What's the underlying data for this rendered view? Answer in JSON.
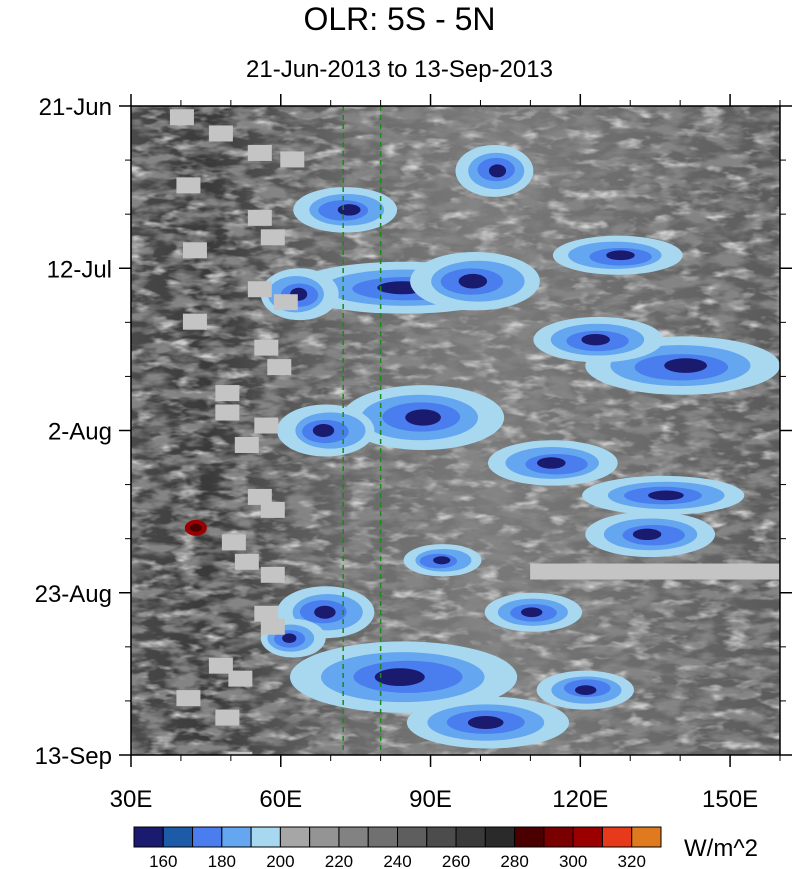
{
  "chart_data": {
    "type": "heatmap",
    "title": "OLR: 5S - 5N",
    "subtitle": "21-Jun-2013 to 13-Sep-2013",
    "x_ticks": [
      "30E",
      "60E",
      "90E",
      "120E",
      "150E"
    ],
    "x_tick_values": [
      30,
      60,
      90,
      120,
      150
    ],
    "xlim": [
      30,
      160
    ],
    "y_ticks": [
      "21-Jun",
      "12-Jul",
      "2-Aug",
      "23-Aug",
      "13-Sep"
    ],
    "y_range": [
      "2013-06-21",
      "2013-09-13"
    ],
    "reference_lines_lon": [
      72.5,
      80
    ],
    "colorbar": {
      "levels": [
        160,
        170,
        180,
        190,
        200,
        210,
        220,
        230,
        240,
        250,
        260,
        270,
        280,
        290,
        300,
        310,
        320
      ],
      "labels": [
        "160",
        "180",
        "200",
        "220",
        "240",
        "260",
        "280",
        "300",
        "320"
      ],
      "label_values": [
        160,
        180,
        200,
        220,
        240,
        260,
        280,
        300,
        320
      ],
      "colors": [
        "#1a1a6e",
        "#1d5aa8",
        "#4a7eee",
        "#64a6ef",
        "#a8d8f0",
        "#a6a6a6",
        "#949494",
        "#828282",
        "#707070",
        "#5e5e5e",
        "#4c4c4c",
        "#3a3a3a",
        "#2a2a2a",
        "#4a0000",
        "#7a0000",
        "#9b0000",
        "#e63a1a",
        "#e07a1e"
      ],
      "units": "W/m^2"
    }
  }
}
